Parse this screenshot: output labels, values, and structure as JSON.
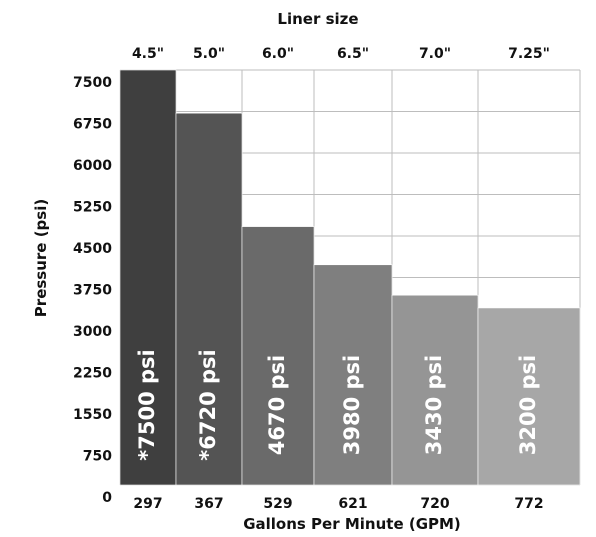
{
  "chart_data": {
    "type": "bar",
    "top_axis_title": "Liner size",
    "liner_sizes": [
      "4.5\"",
      "5.0\"",
      "6.0\"",
      "6.5\"",
      "7.0\"",
      "7.25\""
    ],
    "categories": [
      "297",
      "367",
      "529",
      "621",
      "720",
      "772"
    ],
    "values": [
      7500,
      6720,
      4670,
      3980,
      3430,
      3200
    ],
    "bar_labels": [
      "*7500 psi",
      "*6720 psi",
      "4670 psi",
      "3980 psi",
      "3430 psi",
      "3200 psi"
    ],
    "bar_colors": [
      "#3f3f3f",
      "#545454",
      "#6a6a6a",
      "#7f7f7f",
      "#959595",
      "#a7a7a7"
    ],
    "y_ticks": [
      "7500",
      "6750",
      "6000",
      "5250",
      "4500",
      "3750",
      "3000",
      "2250",
      "1550",
      "750",
      "0"
    ],
    "xlabel": "Gallons Per Minute (GPM)",
    "ylabel": "Pressure (psi)",
    "grid": true
  }
}
